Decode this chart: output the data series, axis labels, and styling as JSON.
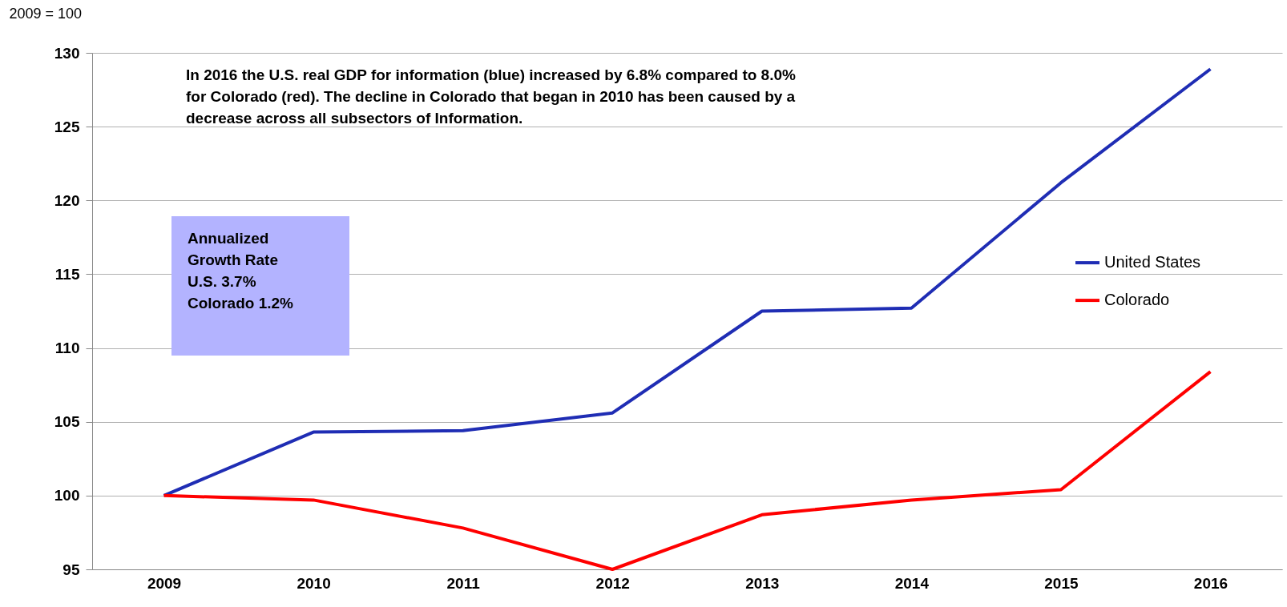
{
  "chart_data": {
    "type": "line",
    "ylabel": "2009 = 100",
    "categories": [
      "2009",
      "2010",
      "2011",
      "2012",
      "2013",
      "2014",
      "2015",
      "2016"
    ],
    "series": [
      {
        "name": "United States",
        "color": "#1f2db4",
        "values": [
          100,
          104.3,
          104.4,
          105.6,
          112.5,
          112.7,
          121.2,
          128.9
        ]
      },
      {
        "name": "Colorado",
        "color": "#ff0000",
        "values": [
          100,
          99.7,
          97.8,
          95.0,
          98.7,
          99.7,
          100.4,
          108.4
        ]
      }
    ],
    "ylim": [
      95,
      130
    ],
    "yticks": [
      95,
      100,
      105,
      110,
      115,
      120,
      125,
      130
    ],
    "grid": "y",
    "legend": "right",
    "marker": "none",
    "line_style": "solid",
    "annotations": [
      "In 2016 the U.S. real GDP for information (blue) increased by 6.8% compared to 8.0% for Colorado (red). The decline in Colorado that began in 2010 has been caused by a decrease across all subsectors of Information.",
      "Annualized\nGrowth Rate\nU.S. 3.7%\nColorado 1.2%"
    ]
  }
}
